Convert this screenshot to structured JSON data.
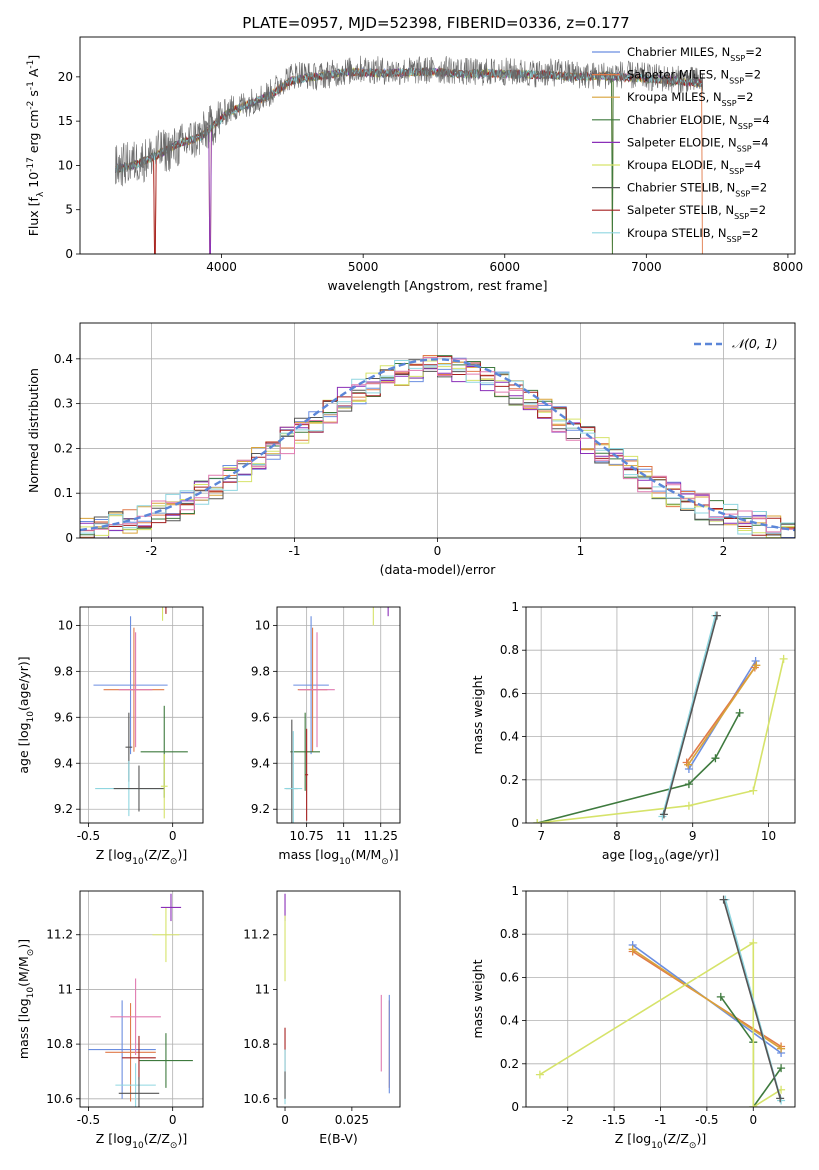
{
  "colors": {
    "chabrier_miles": "#6b8ee0",
    "salpeter_miles": "#e07a4a",
    "kroupa_miles": "#d9a33a",
    "chabrier_elodie": "#3e7a3e",
    "salpeter_elodie": "#8a2fb8",
    "kroupa_elodie": "#d6e36a",
    "chabrier_stelib": "#555555",
    "salpeter_stelib": "#a52020",
    "kroupa_stelib": "#8fd6e0",
    "pink": "#e07ab0",
    "normal": "#5b86d8",
    "grid": "#b0b0b0"
  },
  "chart_data": [
    {
      "id": "spectrum",
      "type": "line",
      "title": "PLATE=0957, MJD=52398, FIBERID=0336, z=0.177",
      "xlabel": "wavelength [Angstrom, rest frame]",
      "ylabel": "Flux [f_λ 10^-17 erg cm^-2 s^-1 A^-1]",
      "xlim": [
        3000,
        8050
      ],
      "ylim": [
        0,
        24.5
      ],
      "xticks": [
        4000,
        5000,
        6000,
        7000,
        8000
      ],
      "yticks": [
        0,
        5,
        10,
        15,
        20
      ],
      "grid": false,
      "legend": "top-right",
      "legend_entries": [
        "Chabrier MILES, N_SSP=2",
        "Salpeter MILES, N_SSP=2",
        "Kroupa MILES, N_SSP=2",
        "Chabrier ELODIE, N_SSP=4",
        "Salpeter ELODIE, N_SSP=4",
        "Kroupa ELODIE, N_SSP=4",
        "Chabrier STELIB, N_SSP=2",
        "Salpeter STELIB, N_SSP=2",
        "Kroupa STELIB, N_SSP=2"
      ],
      "data_x": [
        3250,
        3350,
        3450,
        3550,
        3650,
        3750,
        3850,
        3950,
        4050,
        4150,
        4250,
        4350,
        4450,
        4550,
        4650,
        4800,
        5000,
        5200,
        5400,
        5600,
        5800,
        6000,
        6200,
        6400,
        6600,
        6800,
        7000,
        7200,
        7400
      ],
      "data_y": [
        9.8,
        10.3,
        10.6,
        11.5,
        11.8,
        12.6,
        13.3,
        14.8,
        16.3,
        16.8,
        17.5,
        18.2,
        19.8,
        20.4,
        20.0,
        20.4,
        20.9,
        20.6,
        20.7,
        20.8,
        20.5,
        20.6,
        20.4,
        20.5,
        20.1,
        20.3,
        20.0,
        19.7,
        19.5
      ],
      "model_x": [
        3250,
        3400,
        3550,
        3700,
        3850,
        3950,
        4050,
        4200,
        4350,
        4500,
        4700,
        4900,
        5100,
        5300,
        5500,
        5700,
        5900,
        6100,
        6300,
        6500,
        6700,
        6900,
        7100,
        7300,
        7400
      ],
      "model_y": [
        9.6,
        10.1,
        11.2,
        12.5,
        13.2,
        14.6,
        16.0,
        17.0,
        18.0,
        19.6,
        20.1,
        20.6,
        20.4,
        20.5,
        20.6,
        20.3,
        20.4,
        20.3,
        20.2,
        20.0,
        20.1,
        19.9,
        19.7,
        19.4,
        19.2
      ],
      "dropouts_x": [
        3530,
        3920,
        6760,
        7400
      ]
    },
    {
      "id": "residuals",
      "type": "histogram",
      "xlabel": "(data-model)/error",
      "ylabel": "Normed distribution",
      "xlim": [
        -2.5,
        2.5
      ],
      "ylim": [
        0,
        0.48
      ],
      "xticks": [
        -2,
        -1,
        0,
        1,
        2
      ],
      "yticks": [
        0.0,
        0.1,
        0.2,
        0.3,
        0.4
      ],
      "grid": true,
      "legend": "top-right",
      "legend_label": "𝒩(0, 1)",
      "bin_start": -2.5,
      "bin_width": 0.1
    },
    {
      "id": "z-age",
      "type": "errorbar",
      "xlabel": "Z [log10(Z/Z⊙)]",
      "ylabel": "age  [log10(age/yr)]",
      "xlim": [
        -0.55,
        0.18
      ],
      "ylim": [
        9.14,
        10.08
      ],
      "xticks": [
        -0.5,
        0.0
      ],
      "yticks": [
        9.2,
        9.4,
        9.6,
        9.8,
        10.0
      ],
      "grid": true,
      "points": [
        {
          "x": -0.25,
          "y": 9.74,
          "xerr": 0.22,
          "yerr": 0.3,
          "color": "chabrier_miles"
        },
        {
          "x": -0.23,
          "y": 9.72,
          "xerr": 0.18,
          "yerr": 0.27,
          "color": "salpeter_miles"
        },
        {
          "x": -0.22,
          "y": 9.72,
          "xerr": 0.1,
          "yerr": 0.25,
          "color": "pink"
        },
        {
          "x": -0.06,
          "y": 10.1,
          "xerr": 0.05,
          "yerr": 0.08,
          "color": "kroupa_elodie"
        },
        {
          "x": -0.04,
          "y": 10.1,
          "xerr": 0.06,
          "yerr": 0.05,
          "color": "salpeter_stelib"
        },
        {
          "x": -0.05,
          "y": 9.45,
          "xerr": 0.14,
          "yerr": 0.2,
          "color": "chabrier_elodie"
        },
        {
          "x": -0.26,
          "y": 9.47,
          "xerr": 0.02,
          "yerr": 0.15,
          "color": "chabrier_stelib"
        },
        {
          "x": -0.26,
          "y": 9.29,
          "xerr": 0.2,
          "yerr": 0.12,
          "color": "kroupa_stelib"
        },
        {
          "x": -0.2,
          "y": 9.29,
          "xerr": 0.15,
          "yerr": 0.1,
          "color": "chabrier_stelib"
        },
        {
          "x": -0.05,
          "y": 9.3,
          "xerr": 0.02,
          "yerr": 0.14,
          "color": "kroupa_elodie"
        }
      ]
    },
    {
      "id": "mass-age",
      "type": "errorbar",
      "xlabel": "mass [log10(M/M⊙)]",
      "ylabel": "",
      "xlim": [
        10.55,
        11.38
      ],
      "ylim": [
        9.14,
        10.08
      ],
      "xticks": [
        10.75,
        11.0,
        11.25
      ],
      "yticks": [
        9.2,
        9.4,
        9.6,
        9.8,
        10.0
      ],
      "grid": true,
      "points": [
        {
          "x": 10.78,
          "y": 9.74,
          "xerr": 0.12,
          "yerr": 0.3,
          "color": "chabrier_miles"
        },
        {
          "x": 10.79,
          "y": 9.72,
          "xerr": 0.1,
          "yerr": 0.27,
          "color": "salpeter_miles"
        },
        {
          "x": 10.82,
          "y": 9.72,
          "xerr": 0.12,
          "yerr": 0.25,
          "color": "pink"
        },
        {
          "x": 11.2,
          "y": 10.1,
          "xerr": 0.13,
          "yerr": 0.1,
          "color": "kroupa_elodie"
        },
        {
          "x": 11.3,
          "y": 10.1,
          "xerr": 0.08,
          "yerr": 0.06,
          "color": "salpeter_elodie"
        },
        {
          "x": 10.74,
          "y": 9.45,
          "xerr": 0.1,
          "yerr": 0.17,
          "color": "chabrier_elodie"
        },
        {
          "x": 10.75,
          "y": 9.35,
          "xerr": 0.01,
          "yerr": 0.2,
          "color": "salpeter_stelib"
        },
        {
          "x": 10.65,
          "y": 9.29,
          "xerr": 0.04,
          "yerr": 0.3,
          "color": "chabrier_stelib"
        },
        {
          "x": 10.66,
          "y": 9.29,
          "xerr": 0.06,
          "yerr": 0.25,
          "color": "kroupa_stelib"
        }
      ]
    },
    {
      "id": "age-weight",
      "type": "line",
      "xlabel": "age  [log10(age/yr)]",
      "ylabel": "mass weight",
      "xlim": [
        6.8,
        10.35
      ],
      "ylim": [
        0,
        1.0
      ],
      "xticks": [
        7,
        8,
        9,
        10
      ],
      "yticks": [
        0.0,
        0.2,
        0.4,
        0.6,
        0.8,
        1.0
      ],
      "grid": true,
      "series": [
        {
          "color": "chabrier_miles",
          "x": [
            8.95,
            9.83
          ],
          "y": [
            0.25,
            0.75
          ]
        },
        {
          "color": "salpeter_miles",
          "x": [
            8.92,
            9.82
          ],
          "y": [
            0.28,
            0.72
          ]
        },
        {
          "color": "kroupa_miles",
          "x": [
            8.94,
            9.84
          ],
          "y": [
            0.27,
            0.73
          ]
        },
        {
          "color": "chabrier_elodie",
          "x": [
            6.95,
            8.95,
            9.3,
            9.62
          ],
          "y": [
            0.0,
            0.18,
            0.3,
            0.51
          ]
        },
        {
          "color": "kroupa_elodie",
          "x": [
            6.95,
            8.95,
            9.8,
            10.2
          ],
          "y": [
            0.0,
            0.08,
            0.15,
            0.76
          ]
        },
        {
          "color": "kroupa_stelib",
          "x": [
            8.6,
            9.3
          ],
          "y": [
            0.03,
            0.96
          ]
        },
        {
          "color": "chabrier_stelib",
          "x": [
            8.62,
            9.32
          ],
          "y": [
            0.04,
            0.96
          ]
        }
      ]
    },
    {
      "id": "z-mass",
      "type": "errorbar",
      "xlabel": "Z [log10(Z/Z⊙)]",
      "ylabel": "mass [log10(M/M⊙)]",
      "xlim": [
        -0.55,
        0.18
      ],
      "ylim": [
        10.57,
        11.36
      ],
      "xticks": [
        -0.5,
        0.0
      ],
      "yticks": [
        10.6,
        10.8,
        11.0,
        11.2
      ],
      "grid": true,
      "points": [
        {
          "x": -0.3,
          "y": 10.78,
          "xerr": 0.2,
          "yerr": 0.18,
          "color": "chabrier_miles"
        },
        {
          "x": -0.25,
          "y": 10.77,
          "xerr": 0.15,
          "yerr": 0.18,
          "color": "salpeter_miles"
        },
        {
          "x": -0.22,
          "y": 10.9,
          "xerr": 0.15,
          "yerr": 0.14,
          "color": "pink"
        },
        {
          "x": -0.04,
          "y": 11.2,
          "xerr": 0.08,
          "yerr": 0.1,
          "color": "kroupa_elodie"
        },
        {
          "x": -0.01,
          "y": 11.3,
          "xerr": 0.06,
          "yerr": 0.05,
          "color": "salpeter_elodie"
        },
        {
          "x": -0.04,
          "y": 10.74,
          "xerr": 0.16,
          "yerr": 0.1,
          "color": "chabrier_elodie"
        },
        {
          "x": -0.2,
          "y": 10.75,
          "xerr": 0.1,
          "yerr": 0.08,
          "color": "salpeter_stelib"
        },
        {
          "x": -0.22,
          "y": 10.65,
          "xerr": 0.12,
          "yerr": 0.08,
          "color": "kroupa_stelib"
        },
        {
          "x": -0.2,
          "y": 10.62,
          "xerr": 0.12,
          "yerr": 0.06,
          "color": "chabrier_stelib"
        }
      ]
    },
    {
      "id": "ebv-mass",
      "type": "errorbar",
      "xlabel": "E(B-V)",
      "ylabel": "",
      "xlim": [
        -0.003,
        0.043
      ],
      "ylim": [
        10.57,
        11.36
      ],
      "xticks": [
        0.0,
        0.025
      ],
      "yticks": [
        10.6,
        10.8,
        11.0,
        11.2
      ],
      "grid": false,
      "points": [
        {
          "x": 0.0,
          "y": 11.3,
          "xerr": 0,
          "yerr": 0.05,
          "color": "salpeter_elodie"
        },
        {
          "x": 0.0,
          "y": 11.15,
          "xerr": 0,
          "yerr": 0.12,
          "color": "kroupa_elodie"
        },
        {
          "x": 0.0,
          "y": 10.78,
          "xerr": 0,
          "yerr": 0.08,
          "color": "salpeter_stelib"
        },
        {
          "x": 0.0,
          "y": 10.68,
          "xerr": 0,
          "yerr": 0.1,
          "color": "kroupa_stelib"
        },
        {
          "x": 0.0,
          "y": 10.65,
          "xerr": 0,
          "yerr": 0.05,
          "color": "chabrier_stelib"
        },
        {
          "x": 0.036,
          "y": 10.84,
          "xerr": 0,
          "yerr": 0.14,
          "color": "pink"
        },
        {
          "x": 0.039,
          "y": 10.8,
          "xerr": 0,
          "yerr": 0.16,
          "color": "salpeter_miles"
        },
        {
          "x": 0.039,
          "y": 10.8,
          "xerr": 0,
          "yerr": 0.18,
          "color": "chabrier_miles"
        }
      ]
    },
    {
      "id": "z-weight",
      "type": "line",
      "xlabel": "Z [log10(Z/Z⊙)]",
      "ylabel": "mass weight",
      "xlim": [
        -2.45,
        0.45
      ],
      "ylim": [
        0,
        1.0
      ],
      "xticks": [
        -2.0,
        -1.5,
        -1.0,
        -0.5,
        0.0
      ],
      "yticks": [
        0.0,
        0.2,
        0.4,
        0.6,
        0.8,
        1.0
      ],
      "grid": true,
      "series": [
        {
          "color": "chabrier_miles",
          "x": [
            -1.3,
            0.3
          ],
          "y": [
            0.75,
            0.25
          ]
        },
        {
          "color": "salpeter_miles",
          "x": [
            -1.3,
            0.3
          ],
          "y": [
            0.72,
            0.28
          ]
        },
        {
          "color": "kroupa_miles",
          "x": [
            -1.3,
            0.3
          ],
          "y": [
            0.73,
            0.27
          ]
        },
        {
          "color": "chabrier_elodie",
          "x": [
            -0.35,
            0.0,
            0.0,
            0.3
          ],
          "y": [
            0.51,
            0.3,
            0.0,
            0.18
          ]
        },
        {
          "color": "kroupa_elodie",
          "x": [
            -2.3,
            0.0,
            0.0,
            0.3
          ],
          "y": [
            0.15,
            0.76,
            0.0,
            0.08
          ]
        },
        {
          "color": "kroupa_stelib",
          "x": [
            -0.3,
            0.3
          ],
          "y": [
            0.96,
            0.03
          ]
        },
        {
          "color": "chabrier_stelib",
          "x": [
            -0.32,
            0.29
          ],
          "y": [
            0.96,
            0.04
          ]
        }
      ]
    }
  ]
}
